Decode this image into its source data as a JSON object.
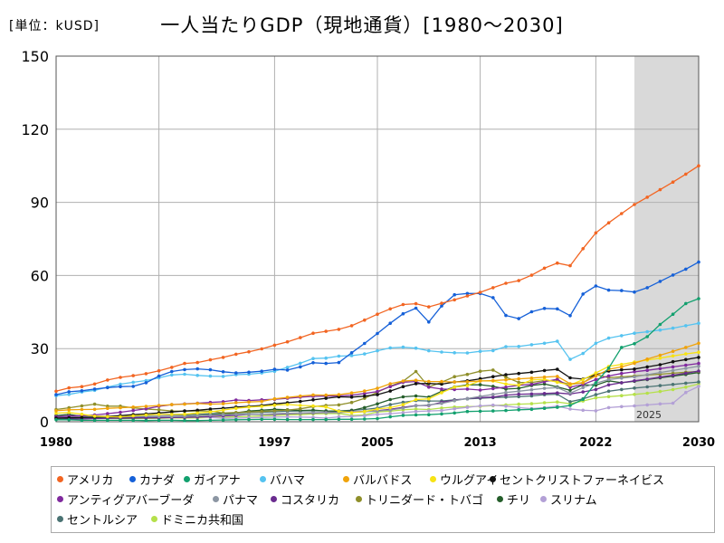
{
  "header": {
    "unit": "[単位：kUSD]",
    "title": "一人当たりGDP（現地通貨）[1980～2030]"
  },
  "chart_data": {
    "type": "line",
    "title": "一人当たりGDP（現地通貨）[1980～2030]",
    "ylabel": "[単位：kUSD]",
    "xlabel": "",
    "ylim": [
      0,
      150
    ],
    "xlim": [
      1980,
      2030
    ],
    "x_ticks": [
      "1980",
      "1988",
      "1997",
      "2005",
      "2013",
      "2022",
      "2030"
    ],
    "x_tick_values": [
      1980,
      1988,
      1997,
      2005,
      2013,
      2022,
      2030
    ],
    "y_ticks": [
      "0",
      "30",
      "60",
      "90",
      "120",
      "150"
    ],
    "y_tick_values": [
      0,
      30,
      60,
      90,
      120,
      150
    ],
    "grid": true,
    "forecast_start": 2025,
    "forecast_label": "2025",
    "years": [
      1980,
      1981,
      1982,
      1983,
      1984,
      1985,
      1986,
      1987,
      1988,
      1989,
      1990,
      1991,
      1992,
      1993,
      1994,
      1995,
      1996,
      1997,
      1998,
      1999,
      2000,
      2001,
      2002,
      2003,
      2004,
      2005,
      2006,
      2007,
      2008,
      2009,
      2010,
      2011,
      2012,
      2013,
      2014,
      2015,
      2016,
      2017,
      2018,
      2019,
      2020,
      2021,
      2022,
      2023,
      2024,
      2025,
      2026,
      2027,
      2028,
      2029,
      2030
    ],
    "series": [
      {
        "name": "アメリカ",
        "color": "#f26522",
        "values": [
          12.5,
          13.9,
          14.4,
          15.5,
          17.1,
          18.2,
          18.9,
          19.7,
          20.9,
          22.3,
          23.9,
          24.3,
          25.4,
          26.4,
          27.7,
          28.7,
          29.9,
          31.4,
          32.8,
          34.5,
          36.3,
          37.1,
          37.9,
          39.4,
          41.7,
          44.1,
          46.3,
          48.1,
          48.4,
          47.1,
          48.6,
          50.0,
          51.6,
          53.1,
          55.0,
          56.8,
          57.9,
          60.1,
          63.0,
          65.1,
          64.0,
          71.0,
          77.5,
          81.6,
          85.4,
          89.1,
          92.1,
          95.2,
          98.3,
          101.6,
          105.0
        ]
      },
      {
        "name": "カナダ",
        "color": "#1560d8",
        "values": [
          11.1,
          12.3,
          12.7,
          13.4,
          14.0,
          14.4,
          14.5,
          16.0,
          18.7,
          20.6,
          21.4,
          21.7,
          21.3,
          20.5,
          20.0,
          20.3,
          20.7,
          21.5,
          21.2,
          22.5,
          24.2,
          23.9,
          24.3,
          28.3,
          32.1,
          36.2,
          40.4,
          44.3,
          46.6,
          40.9,
          47.5,
          52.1,
          52.6,
          52.6,
          50.9,
          43.6,
          42.3,
          45.1,
          46.5,
          46.3,
          43.5,
          52.4,
          55.7,
          54.0,
          53.8,
          53.2,
          55.0,
          57.6,
          60.2,
          62.6,
          65.5
        ]
      },
      {
        "name": "ガイアナ",
        "color": "#12a06e",
        "values": [
          0.8,
          0.8,
          0.6,
          0.6,
          0.6,
          0.6,
          0.6,
          0.5,
          0.6,
          0.6,
          0.5,
          0.5,
          0.6,
          0.7,
          0.8,
          0.9,
          1.0,
          1.0,
          0.9,
          0.9,
          0.9,
          0.9,
          1.0,
          1.0,
          1.1,
          1.3,
          2.0,
          2.6,
          2.8,
          2.9,
          3.2,
          3.6,
          4.2,
          4.3,
          4.4,
          4.6,
          4.9,
          5.1,
          5.5,
          5.9,
          6.7,
          9.2,
          16.0,
          22.0,
          30.5,
          32.0,
          34.9,
          39.9,
          44.1,
          48.5,
          50.5
        ]
      },
      {
        "name": "バハマ",
        "color": "#55c3f0",
        "values": [
          10.7,
          11.2,
          12.2,
          12.9,
          14.2,
          15.4,
          16.2,
          16.9,
          18.0,
          19.2,
          19.5,
          19.0,
          18.7,
          18.6,
          19.3,
          19.5,
          20.0,
          20.7,
          22.3,
          24.0,
          25.9,
          26.1,
          26.9,
          27.1,
          27.8,
          29.1,
          30.3,
          30.6,
          30.2,
          29.1,
          28.6,
          28.3,
          28.2,
          28.9,
          29.2,
          30.8,
          30.9,
          31.6,
          32.2,
          33.0,
          25.6,
          28.0,
          32.2,
          34.3,
          35.3,
          36.3,
          36.9,
          37.6,
          38.4,
          39.4,
          40.4
        ]
      },
      {
        "name": "バルバドス",
        "color": "#f0a30a",
        "values": [
          4.5,
          4.9,
          5.0,
          5.1,
          5.5,
          5.7,
          6.0,
          6.3,
          6.7,
          7.0,
          7.2,
          7.5,
          7.2,
          7.4,
          7.8,
          8.1,
          8.3,
          9.4,
          10.0,
          10.5,
          11.0,
          10.9,
          11.1,
          11.8,
          12.6,
          13.7,
          15.6,
          16.7,
          17.0,
          16.5,
          16.5,
          16.3,
          16.4,
          16.7,
          16.9,
          17.2,
          17.6,
          17.9,
          18.3,
          18.6,
          15.6,
          16.0,
          18.8,
          21.5,
          22.5,
          24.0,
          25.7,
          27.3,
          28.9,
          30.5,
          32.2
        ]
      },
      {
        "name": "ウルグアイ",
        "color": "#f7e314",
        "values": [
          3.5,
          3.8,
          3.1,
          2.3,
          2.1,
          2.0,
          2.4,
          2.8,
          3.0,
          3.0,
          3.1,
          3.6,
          4.0,
          4.8,
          5.5,
          6.0,
          6.3,
          6.8,
          7.1,
          6.7,
          6.5,
          6.0,
          4.3,
          3.7,
          4.2,
          5.2,
          5.8,
          7.0,
          9.1,
          9.4,
          11.9,
          14.2,
          14.8,
          16.8,
          16.7,
          15.5,
          15.0,
          17.1,
          17.4,
          16.2,
          15.0,
          17.3,
          20.0,
          22.7,
          23.5,
          24.5,
          25.3,
          26.1,
          27.0,
          27.8,
          28.5
        ]
      },
      {
        "name": "セントクリストファーネイビス",
        "color": "#111111",
        "values": [
          1.5,
          1.6,
          1.7,
          1.9,
          2.2,
          2.5,
          2.9,
          3.2,
          3.6,
          4.0,
          4.4,
          4.7,
          5.2,
          5.5,
          6.0,
          6.3,
          6.7,
          7.3,
          7.8,
          8.3,
          9.0,
          9.6,
          10.2,
          10.1,
          10.5,
          11.1,
          12.6,
          14.4,
          15.6,
          15.7,
          15.4,
          16.3,
          16.8,
          17.6,
          18.5,
          19.3,
          19.8,
          20.3,
          21.0,
          21.5,
          18.0,
          17.5,
          19.3,
          20.8,
          21.3,
          21.6,
          22.5,
          23.4,
          24.6,
          25.5,
          26.4
        ]
      },
      {
        "name": "アンティグアバーブーダ",
        "color": "#802a9e",
        "values": [
          2.0,
          2.3,
          2.5,
          2.8,
          3.3,
          3.9,
          4.6,
          5.3,
          6.3,
          7.0,
          7.3,
          7.6,
          7.9,
          8.2,
          8.9,
          8.7,
          9.0,
          9.2,
          9.6,
          10.1,
          10.4,
          10.5,
          10.6,
          10.9,
          11.6,
          12.4,
          14.4,
          16.2,
          16.5,
          14.2,
          13.4,
          13.2,
          13.4,
          13.0,
          13.6,
          14.2,
          15.0,
          15.3,
          16.4,
          17.4,
          14.2,
          15.3,
          17.3,
          18.8,
          19.8,
          20.5,
          21.1,
          21.8,
          22.5,
          23.2,
          23.9
        ]
      },
      {
        "name": "パナマ",
        "color": "#8c96a3",
        "values": [
          1.8,
          2.0,
          2.2,
          2.2,
          2.3,
          2.4,
          2.5,
          2.4,
          2.1,
          2.1,
          2.2,
          2.5,
          2.7,
          2.9,
          3.0,
          3.1,
          3.1,
          3.3,
          3.5,
          3.6,
          3.7,
          3.7,
          3.8,
          3.9,
          4.1,
          4.4,
          4.8,
          5.6,
          6.5,
          6.9,
          7.5,
          8.6,
          9.5,
          10.4,
          11.2,
          12.0,
          12.5,
          13.1,
          13.7,
          14.0,
          11.7,
          14.0,
          15.8,
          17.3,
          17.9,
          18.4,
          19.3,
          20.2,
          21.0,
          21.9,
          22.8
        ]
      },
      {
        "name": "コスタリカ",
        "color": "#6a2c8f",
        "values": [
          2.0,
          1.2,
          1.1,
          1.3,
          1.4,
          1.5,
          1.6,
          1.6,
          1.6,
          1.7,
          1.8,
          1.9,
          2.2,
          2.4,
          2.6,
          3.0,
          3.0,
          3.1,
          3.3,
          3.5,
          3.6,
          3.8,
          3.9,
          4.0,
          4.2,
          4.5,
          5.1,
          5.9,
          6.6,
          6.7,
          8.0,
          8.8,
          9.5,
          9.9,
          10.1,
          10.9,
          11.3,
          11.4,
          11.6,
          11.8,
          11.4,
          12.2,
          13.2,
          15.1,
          16.0,
          16.8,
          17.5,
          18.3,
          19.1,
          19.9,
          20.8
        ]
      },
      {
        "name": "トリニダード・トバゴ",
        "color": "#8f8f2a",
        "values": [
          5.0,
          5.7,
          6.5,
          7.2,
          6.4,
          6.4,
          5.7,
          5.2,
          4.9,
          4.4,
          4.3,
          4.4,
          4.4,
          3.6,
          3.8,
          4.0,
          4.2,
          4.5,
          4.8,
          5.3,
          6.2,
          6.7,
          6.9,
          7.9,
          9.6,
          12.1,
          14.6,
          16.6,
          20.6,
          14.3,
          16.2,
          18.5,
          19.4,
          20.7,
          21.2,
          18.3,
          16.1,
          16.1,
          16.9,
          16.6,
          15.3,
          16.0,
          19.3,
          18.1,
          18.4,
          18.8,
          19.2,
          19.5,
          19.9,
          20.3,
          20.6
        ]
      },
      {
        "name": "チリ",
        "color": "#255e2b",
        "values": [
          2.5,
          3.0,
          2.2,
          1.8,
          1.7,
          1.4,
          1.5,
          1.6,
          1.8,
          2.0,
          2.2,
          2.5,
          3.0,
          3.2,
          3.6,
          4.4,
          4.7,
          5.1,
          4.9,
          4.6,
          4.8,
          4.4,
          4.3,
          4.6,
          5.8,
          7.3,
          9.1,
          10.2,
          10.6,
          10.1,
          12.5,
          14.3,
          15.1,
          15.2,
          14.5,
          13.4,
          13.7,
          14.9,
          15.5,
          14.3,
          12.9,
          15.1,
          15.0,
          16.8,
          16.0,
          16.6,
          17.3,
          18.0,
          18.7,
          19.4,
          20.2
        ]
      },
      {
        "name": "スリナム",
        "color": "#b3a0d6",
        "values": [
          2.4,
          2.5,
          2.5,
          2.3,
          2.3,
          2.2,
          2.3,
          2.3,
          2.4,
          2.4,
          2.3,
          2.0,
          1.8,
          1.4,
          1.5,
          1.6,
          1.8,
          1.9,
          2.0,
          1.9,
          1.8,
          1.5,
          2.0,
          2.2,
          2.5,
          3.0,
          3.3,
          3.7,
          4.2,
          4.4,
          4.6,
          5.3,
          5.9,
          6.5,
          6.8,
          6.4,
          5.8,
          5.4,
          5.8,
          6.4,
          5.2,
          4.7,
          4.5,
          5.8,
          6.2,
          6.5,
          6.9,
          7.3,
          7.6,
          12.0,
          14.5
        ]
      },
      {
        "name": "セントルシア",
        "color": "#4a7373",
        "values": [
          1.2,
          1.3,
          1.4,
          1.5,
          1.6,
          1.8,
          1.9,
          2.1,
          2.4,
          2.6,
          2.8,
          3.0,
          3.3,
          3.4,
          3.6,
          3.8,
          3.9,
          4.1,
          4.3,
          4.4,
          4.5,
          4.4,
          4.4,
          4.7,
          5.0,
          5.6,
          7.0,
          8.0,
          8.7,
          8.5,
          8.5,
          9.0,
          9.4,
          9.6,
          9.9,
          10.1,
          10.3,
          10.6,
          11.1,
          11.3,
          8.2,
          9.4,
          11.1,
          12.5,
          13.2,
          13.8,
          14.3,
          14.8,
          15.3,
          15.8,
          16.3
        ]
      },
      {
        "name": "ドミニカ共和国",
        "color": "#b5e04a",
        "values": [
          1.2,
          1.3,
          1.4,
          1.5,
          1.4,
          1.3,
          1.4,
          1.3,
          1.4,
          1.6,
          1.5,
          1.6,
          1.7,
          1.9,
          2.0,
          2.2,
          2.4,
          2.6,
          2.8,
          2.9,
          3.2,
          3.3,
          3.4,
          2.6,
          2.8,
          4.0,
          4.3,
          4.9,
          5.2,
          5.0,
          5.6,
          6.0,
          6.2,
          6.3,
          6.6,
          6.9,
          7.2,
          7.4,
          7.8,
          8.1,
          7.4,
          8.5,
          9.8,
          10.3,
          10.7,
          11.2,
          11.7,
          12.4,
          13.2,
          14.2,
          15.5
        ]
      }
    ]
  }
}
